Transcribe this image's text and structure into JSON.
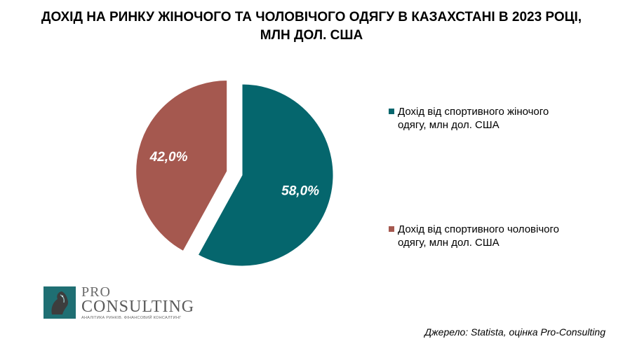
{
  "title": "ДОХІД НА РИНКУ ЖІНОЧОГО ТА ЧОЛОВІЧОГО ОДЯГУ В КАЗАХСТАНІ В 2023 РОЦІ, МЛН ДОЛ. США",
  "source": "Джерело: Statista, оцінка Pro-Consulting",
  "logo": {
    "pro": "PRO",
    "consulting": "CONSULTING",
    "tagline": "АНАЛІТИКА РИНКІВ. ФІНАНСОВИЙ КОНСАЛТИНГ"
  },
  "chart_data": {
    "type": "pie",
    "title": "ДОХІД НА РИНКУ ЖІНОЧОГО ТА ЧОЛОВІЧОГО ОДЯГУ В КАЗАХСТАНІ В 2023 РОЦІ, МЛН ДОЛ. США",
    "legend_position": "right",
    "slices": [
      {
        "label": "Дохід від спортивного жіночого одягу, млн дол. США",
        "value": 58.0,
        "data_label": "58,0%",
        "color": "#05666d"
      },
      {
        "label": "Дохід від спортивного чоловічого одягу, млн дол. США",
        "value": 42.0,
        "data_label": "42,0%",
        "color": "#a5584f"
      }
    ]
  }
}
